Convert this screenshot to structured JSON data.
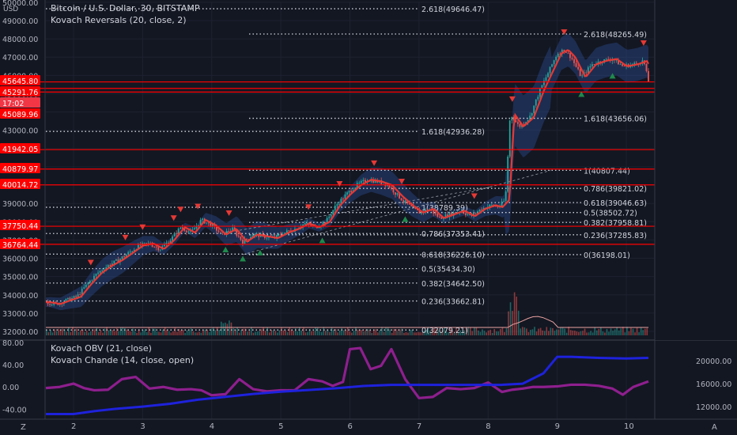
{
  "header": {
    "symbol_title": "Bitcoin / U.S. Dollar, 30, BITSTAMP",
    "indicator_line": "Kovach Reversals (20, close, 2)",
    "currency": "USD"
  },
  "osc_legend": {
    "line1": "Kovach OBV (21, close)",
    "line2": "Kovach Chande (14, close, open)"
  },
  "footer": {
    "left_icon": "Z",
    "right_icon": "A"
  },
  "colors": {
    "background": "#131722",
    "grid": "#1e2230",
    "level_line": "#ff0000",
    "candle_up": "#26a69a",
    "candle_down": "#ef5350",
    "ma": "#e53935",
    "band": "#2b4a8b",
    "obv": "#1e22dc",
    "chande": "#8e1f8e",
    "triangle_up": "#1f8a4c",
    "triangle_down": "#e53935"
  },
  "chart_data": [
    {
      "type": "candlestick",
      "title": "Bitcoin / U.S. Dollar, 30, BITSTAMP",
      "ylabel": "USD",
      "ylim": [
        31800,
        50000
      ],
      "x_ticks": [
        "2",
        "3",
        "4",
        "5",
        "6",
        "7",
        "8",
        "9",
        "10"
      ],
      "xlim_days": [
        1.6,
        10.4
      ],
      "y_ticks": [
        "32000.00",
        "33000.00",
        "34000.00",
        "35000.00",
        "36000.00",
        "37000.00",
        "38000.00",
        "39000.00",
        "40000.00",
        "41000.00",
        "42000.00",
        "43000.00",
        "44000.00",
        "45000.00",
        "46000.00",
        "47000.00",
        "48000.00",
        "49000.00",
        "50000.00"
      ],
      "price_series": [
        [
          1.6,
          33600
        ],
        [
          1.75,
          33500
        ],
        [
          1.9,
          33700
        ],
        [
          2.05,
          33900
        ],
        [
          2.2,
          34600
        ],
        [
          2.35,
          35200
        ],
        [
          2.5,
          35600
        ],
        [
          2.65,
          35900
        ],
        [
          2.8,
          36300
        ],
        [
          2.95,
          36700
        ],
        [
          3.1,
          36800
        ],
        [
          3.25,
          36500
        ],
        [
          3.4,
          37000
        ],
        [
          3.55,
          37700
        ],
        [
          3.7,
          37400
        ],
        [
          3.85,
          38100
        ],
        [
          4.0,
          37800
        ],
        [
          4.15,
          37300
        ],
        [
          4.3,
          37600
        ],
        [
          4.45,
          36900
        ],
        [
          4.6,
          37300
        ],
        [
          4.75,
          37200
        ],
        [
          4.9,
          37100
        ],
        [
          5.05,
          37400
        ],
        [
          5.2,
          37600
        ],
        [
          5.35,
          37900
        ],
        [
          5.5,
          37700
        ],
        [
          5.65,
          38000
        ],
        [
          5.8,
          38900
        ],
        [
          5.95,
          39500
        ],
        [
          6.1,
          40000
        ],
        [
          6.25,
          40300
        ],
        [
          6.4,
          40200
        ],
        [
          6.55,
          40000
        ],
        [
          6.7,
          39400
        ],
        [
          6.85,
          38900
        ],
        [
          7.0,
          38500
        ],
        [
          7.15,
          38700
        ],
        [
          7.3,
          38200
        ],
        [
          7.45,
          38400
        ],
        [
          7.6,
          38600
        ],
        [
          7.75,
          38300
        ],
        [
          7.9,
          38700
        ],
        [
          8.05,
          38900
        ],
        [
          8.15,
          38800
        ],
        [
          8.25,
          39200
        ],
        [
          8.32,
          43900
        ],
        [
          8.45,
          43200
        ],
        [
          8.6,
          43700
        ],
        [
          8.75,
          45200
        ],
        [
          8.9,
          46400
        ],
        [
          9.0,
          47200
        ],
        [
          9.1,
          47400
        ],
        [
          9.2,
          47000
        ],
        [
          9.35,
          45900
        ],
        [
          9.5,
          46600
        ],
        [
          9.65,
          46800
        ],
        [
          9.8,
          46900
        ],
        [
          9.95,
          46500
        ],
        [
          10.1,
          46600
        ],
        [
          10.25,
          46800
        ],
        [
          10.32,
          45650
        ]
      ],
      "levels_red": [
        45645.8,
        45291.76,
        45089.96,
        41942.05,
        40879.97,
        40014.72,
        37750.44,
        36764.44
      ],
      "price_labels": [
        "45645.80",
        "45291.76",
        "17:02",
        "45089.96",
        "41942.05",
        "40879.97",
        "40014.72",
        "37750.44",
        "36764.44"
      ],
      "fib_set_1": {
        "labels": [
          "2.618(49646.47)",
          "1.618(42936.28)",
          "1(38789.39)",
          "0.786(37353.41)",
          "0.618(36226.10)",
          "0.5(35434.30)",
          "0.382(34642.50)",
          "0.236(33662.81)",
          "0(32079.21)"
        ],
        "values": [
          49646.47,
          42936.28,
          38789.39,
          37353.41,
          36226.1,
          35434.3,
          34642.5,
          33662.81,
          32079.21
        ]
      },
      "fib_set_2": {
        "labels": [
          "2.618(48265.49)",
          "1.618(43656.06)",
          "1(40807.44)",
          "0.786(39821.02)",
          "0.618(39046.63)",
          "0.5(38502.72)",
          "0.382(37958.81)",
          "0.236(37285.83)",
          "0(36198.01)"
        ],
        "values": [
          48265.49,
          43656.06,
          40807.44,
          39821.02,
          39046.63,
          38502.72,
          37958.81,
          37285.83,
          36198.01
        ]
      },
      "reversal_down_days": [
        2.25,
        2.75,
        3.0,
        3.45,
        3.55,
        3.8,
        4.25,
        5.4,
        5.85,
        6.35,
        6.75,
        7.8,
        8.35,
        9.1,
        10.25
      ],
      "reversal_up_days": [
        4.2,
        4.45,
        4.7,
        5.6,
        6.8,
        9.35,
        9.8
      ]
    },
    {
      "type": "line",
      "title": "Kovach OBV (21, close) / Kovach Chande (14, close, open)",
      "left_axis_ticks": [
        "80.00",
        "40.00",
        "0.00",
        "-40.00"
      ],
      "left_axis_ylim": [
        -58,
        80
      ],
      "right_axis_ticks": [
        "20000.00",
        "16000.00",
        "12000.00"
      ],
      "right_axis_ylim": [
        9800,
        23200
      ],
      "series": [
        {
          "name": "Kovach OBV (21, close)",
          "axis": "right",
          "x": [
            1.6,
            2.0,
            2.3,
            2.6,
            3.0,
            3.4,
            3.8,
            4.2,
            4.6,
            5.0,
            5.4,
            5.8,
            6.2,
            6.6,
            7.0,
            7.4,
            7.8,
            8.2,
            8.5,
            8.8,
            9.0,
            9.2,
            9.6,
            10.0,
            10.32
          ],
          "values": [
            10700,
            10700,
            11200,
            11600,
            12000,
            12500,
            13200,
            13700,
            14200,
            14600,
            14900,
            15200,
            15600,
            15800,
            15800,
            15800,
            15800,
            15800,
            16000,
            17800,
            20700,
            20700,
            20500,
            20400,
            20500
          ]
        },
        {
          "name": "Kovach Chande (14, close, open)",
          "axis": "left",
          "x": [
            1.6,
            1.8,
            2.0,
            2.15,
            2.3,
            2.5,
            2.7,
            2.9,
            3.1,
            3.3,
            3.5,
            3.7,
            3.85,
            4.0,
            4.2,
            4.4,
            4.6,
            4.8,
            5.0,
            5.2,
            5.4,
            5.6,
            5.75,
            5.9,
            6.0,
            6.15,
            6.3,
            6.45,
            6.6,
            6.8,
            7.0,
            7.2,
            7.4,
            7.6,
            7.8,
            8.0,
            8.2,
            8.35,
            8.5,
            8.65,
            8.8,
            9.0,
            9.2,
            9.4,
            9.6,
            9.8,
            9.95,
            10.1,
            10.32
          ],
          "values": [
            -2,
            0,
            6,
            -2,
            -6,
            -5,
            14,
            18,
            -3,
            0,
            -5,
            -4,
            -6,
            -15,
            -13,
            14,
            -4,
            -8,
            -6,
            -6,
            14,
            10,
            2,
            9,
            68,
            70,
            32,
            38,
            68,
            14,
            -20,
            -18,
            -2,
            -4,
            -2,
            8,
            -9,
            -5,
            -3,
            0,
            0,
            1,
            4,
            4,
            2,
            -3,
            -14,
            0,
            10
          ]
        }
      ]
    }
  ]
}
